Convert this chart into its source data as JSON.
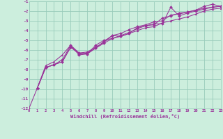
{
  "xlabel": "Windchill (Refroidissement éolien,°C)",
  "bg_color": "#cceedd",
  "grid_color": "#99ccbb",
  "line_color": "#993399",
  "marker_color": "#993399",
  "x_min": 0,
  "x_max": 23,
  "y_min": -12,
  "y_max": -1,
  "line1_x": [
    0,
    1,
    2,
    3,
    4,
    5,
    6,
    7,
    8,
    9,
    10,
    11,
    12,
    13,
    14,
    15,
    16,
    17,
    18,
    19,
    20,
    21,
    22,
    23
  ],
  "line1_y": [
    -12,
    -9.9,
    -7.6,
    -7.2,
    -6.5,
    -5.5,
    -6.3,
    -6.4,
    -5.8,
    -5.1,
    -4.5,
    -4.6,
    -4.3,
    -4.0,
    -3.7,
    -3.6,
    -3.2,
    -3.0,
    -2.8,
    -2.6,
    -2.3,
    -2.0,
    -1.8,
    -1.7
  ],
  "line2_x": [
    1,
    2,
    3,
    4,
    5,
    6,
    7,
    8,
    9,
    10,
    11,
    12,
    13,
    14,
    15,
    16,
    17,
    18,
    19,
    20,
    21,
    22,
    23
  ],
  "line2_y": [
    -9.9,
    -7.8,
    -7.5,
    -7.2,
    -5.7,
    -6.4,
    -6.3,
    -5.8,
    -5.3,
    -4.8,
    -4.5,
    -4.2,
    -3.8,
    -3.5,
    -3.4,
    -2.7,
    -2.5,
    -2.2,
    -2.1,
    -1.9,
    -1.7,
    -1.6,
    -1.5
  ],
  "line3_x": [
    1,
    2,
    3,
    4,
    5,
    6,
    7,
    8,
    9,
    10,
    11,
    12,
    13,
    14,
    15,
    16,
    17,
    18,
    19,
    20,
    21,
    22,
    23
  ],
  "line3_y": [
    -9.9,
    -7.8,
    -7.5,
    -7.2,
    -5.7,
    -6.3,
    -6.2,
    -5.7,
    -5.2,
    -4.5,
    -4.3,
    -3.9,
    -3.6,
    -3.4,
    -3.1,
    -3.0,
    -2.4,
    -2.3,
    -2.1,
    -1.9,
    -1.5,
    -1.3,
    -1.5
  ],
  "line4_x": [
    1,
    2,
    3,
    4,
    5,
    6,
    7,
    8,
    9,
    10,
    11,
    12,
    13,
    14,
    15,
    16,
    17,
    18,
    19,
    20,
    21,
    22,
    23
  ],
  "line4_y": [
    -9.9,
    -7.8,
    -7.5,
    -7.0,
    -5.5,
    -6.5,
    -6.4,
    -5.5,
    -5.0,
    -4.8,
    -4.6,
    -4.3,
    -3.7,
    -3.5,
    -3.3,
    -3.3,
    -1.6,
    -2.5,
    -2.2,
    -2.0,
    -1.8,
    -1.6,
    -1.5
  ],
  "xtick_labels": [
    "0",
    "1",
    "2",
    "3",
    "4",
    "5",
    "6",
    "7",
    "8",
    "9",
    "10",
    "11",
    "12",
    "13",
    "14",
    "15",
    "16",
    "17",
    "18",
    "19",
    "20",
    "21",
    "22",
    "23"
  ],
  "ytick_labels": [
    "-12",
    "-11",
    "-10",
    "-9",
    "-8",
    "-7",
    "-6",
    "-5",
    "-4",
    "-3",
    "-2",
    "-1"
  ]
}
